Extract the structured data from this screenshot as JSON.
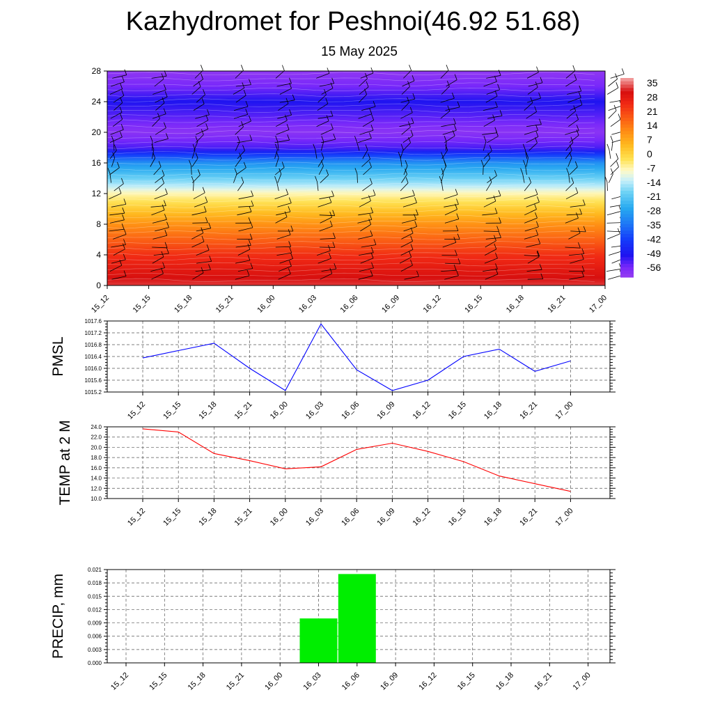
{
  "title": "Kazhydromet for Peshnoi(46.92 51.68)",
  "subtitle": "15 May 2025",
  "time_labels": [
    "15_12",
    "15_15",
    "15_18",
    "15_21",
    "16_00",
    "16_03",
    "16_06",
    "16_09",
    "16_12",
    "16_15",
    "16_18",
    "16_21",
    "17_00"
  ],
  "chart_data": [
    {
      "type": "heatmap",
      "x": [
        "15_12",
        "15_15",
        "15_18",
        "15_21",
        "16_00",
        "16_03",
        "16_06",
        "16_09",
        "16_12",
        "16_15",
        "16_18",
        "16_21",
        "17_00"
      ],
      "y_ticks": [
        0,
        4,
        8,
        12,
        16,
        20,
        24,
        28
      ],
      "ylim": [
        0,
        28
      ],
      "colorbar": {
        "labels": [
          35,
          28,
          21,
          14,
          7,
          0,
          -7,
          -14,
          -21,
          -28,
          -35,
          -42,
          -49,
          -56
        ],
        "range": [
          -63,
          38
        ]
      },
      "profile": [
        {
          "level": 0,
          "value": 33
        },
        {
          "level": 4,
          "value": 24
        },
        {
          "level": 8,
          "value": 10
        },
        {
          "level": 12,
          "value": -8
        },
        {
          "level": 13,
          "value": -15
        },
        {
          "level": 16,
          "value": -32
        },
        {
          "level": 18,
          "value": -55
        },
        {
          "level": 20,
          "value": -61
        },
        {
          "level": 22,
          "value": -56
        },
        {
          "level": 24,
          "value": -52
        },
        {
          "level": 26,
          "value": -58
        },
        {
          "level": 28,
          "value": -62
        }
      ],
      "wind_barbs": true
    },
    {
      "type": "line",
      "ylabel": "PMSL",
      "x": [
        "15_12",
        "15_15",
        "15_18",
        "15_21",
        "16_00",
        "16_03",
        "16_06",
        "16_09",
        "16_12",
        "16_15",
        "16_18",
        "16_21",
        "17_00"
      ],
      "values": [
        1016.35,
        1016.6,
        1016.85,
        1016.0,
        1015.25,
        1017.5,
        1015.95,
        1015.25,
        1015.6,
        1016.4,
        1016.65,
        1015.9,
        1016.25
      ],
      "ylim": [
        1015.2,
        1017.6
      ],
      "y_ticks": [
        "1015.2",
        "1015.6",
        "1016.0",
        "1016.4",
        "1016.8",
        "1017.2",
        "1017.6"
      ],
      "color": "#0000ff",
      "grid": true
    },
    {
      "type": "line",
      "ylabel": "TEMP at 2 M",
      "x": [
        "15_12",
        "15_15",
        "15_18",
        "15_21",
        "16_00",
        "16_03",
        "16_06",
        "16_09",
        "16_12",
        "16_15",
        "16_18",
        "16_21",
        "17_00"
      ],
      "values": [
        23.6,
        23.0,
        18.8,
        17.4,
        15.8,
        16.2,
        19.6,
        20.8,
        19.2,
        17.2,
        14.4,
        12.9,
        11.4
      ],
      "ylim": [
        10.0,
        24.0
      ],
      "y_ticks": [
        "10.0",
        "12.0",
        "14.0",
        "16.0",
        "18.0",
        "20.0",
        "22.0",
        "24.0"
      ],
      "color": "#ff0000",
      "grid": true
    },
    {
      "type": "bar",
      "ylabel": "PRECIP, mm",
      "categories": [
        "15_12",
        "15_15",
        "15_18",
        "15_21",
        "16_00",
        "16_03",
        "16_06",
        "16_09",
        "16_12",
        "16_15",
        "16_18",
        "16_21",
        "17_00"
      ],
      "values": [
        0,
        0,
        0,
        0,
        0,
        0.01,
        0.02,
        0,
        0,
        0,
        0,
        0,
        0
      ],
      "ylim": [
        0,
        0.021
      ],
      "y_ticks": [
        "0.000",
        "0.003",
        "0.006",
        "0.009",
        "0.012",
        "0.015",
        "0.018",
        "0.021"
      ],
      "color": "#00ee00",
      "grid": true
    }
  ]
}
